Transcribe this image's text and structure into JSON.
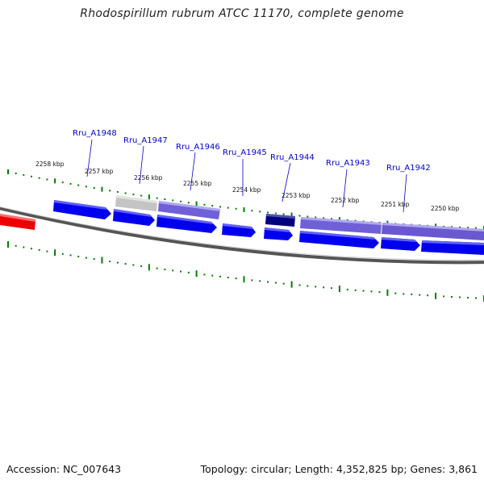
{
  "title": "Rhodospirillum rubrum ATCC 11170, complete genome",
  "footer": {
    "accession": "Accession: NC_007643",
    "topology": "Topology: circular; Length: 4,352,825 bp; Genes: 3,861"
  },
  "kbp_labels": [
    "2258 kbp",
    "2257 kbp",
    "2256 kbp",
    "2255 kbp",
    "2254 kbp",
    "2253 kbp",
    "2252 kbp",
    "2251 kbp",
    "2250 kbp"
  ],
  "genes": [
    {
      "name": "Rru_A1948"
    },
    {
      "name": "Rru_A1947"
    },
    {
      "name": "Rru_A1946"
    },
    {
      "name": "Rru_A1945"
    },
    {
      "name": "Rru_A1944"
    },
    {
      "name": "Rru_A1943"
    },
    {
      "name": "Rru_A1942"
    }
  ],
  "colors": {
    "forward": "#0000ee",
    "reverse": "#7060d8",
    "dark": "#000080",
    "gray": "#bbbbbb",
    "red": "#ee0000",
    "tick": "#008000"
  }
}
